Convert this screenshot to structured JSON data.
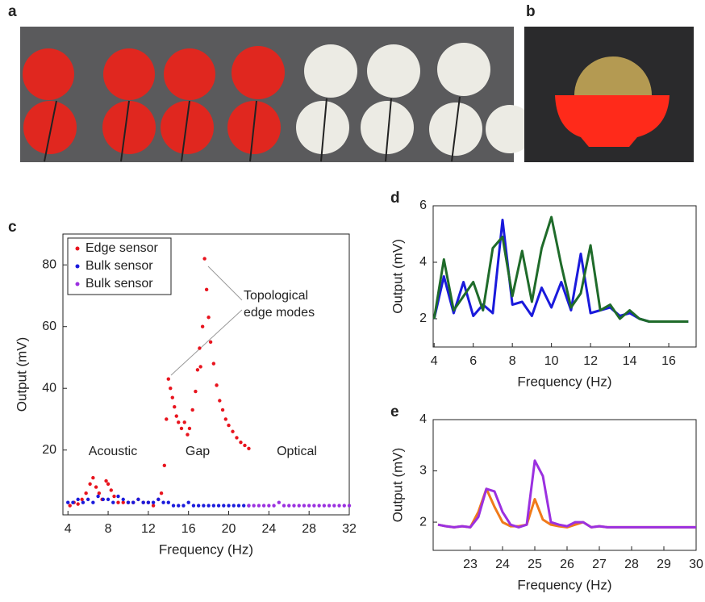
{
  "figure_labels": [
    "a",
    "b"
  ],
  "chart_data": [
    {
      "type": "scatter",
      "panel_label": "c",
      "xlabel": "Frequency (Hz)",
      "ylabel": "Output (mV)",
      "xlim": [
        3.5,
        32
      ],
      "xticks": [
        4,
        8,
        12,
        16,
        20,
        24,
        28,
        32
      ],
      "ylim": [
        -1,
        90
      ],
      "yticks": [
        20,
        40,
        60,
        80
      ],
      "grid": false,
      "legend": "upper left",
      "annotations": [
        "Topological",
        "edge modes",
        "Acoustic",
        "Gap",
        "Optical"
      ],
      "series": [
        {
          "name": "Edge sensor",
          "color": "#e8141e",
          "x": [
            4.2,
            4.6,
            5,
            5.4,
            5.8,
            6.2,
            6.5,
            6.8,
            7.1,
            7.4,
            7.8,
            8,
            8.3,
            8.6,
            9,
            9.5,
            10,
            10.5,
            11,
            11.5,
            12,
            12.5,
            13,
            13.3,
            13.6,
            13.8,
            14,
            14.2,
            14.4,
            14.6,
            14.8,
            15,
            15.3,
            15.6,
            15.9,
            16.1,
            16.4,
            16.7,
            16.9,
            17.1,
            17.2,
            17.4,
            17.6,
            17.8,
            18,
            18.2,
            18.5,
            18.8,
            19.1,
            19.4,
            19.7,
            20,
            20.4,
            20.8,
            21.2,
            21.6,
            22
          ],
          "values": [
            2,
            3,
            2.5,
            4,
            6,
            9,
            11,
            8,
            6,
            4,
            10,
            9,
            7,
            5,
            3,
            3,
            3,
            3,
            4,
            3,
            3,
            2,
            4,
            6,
            15,
            30,
            43,
            40,
            37,
            34,
            31,
            29,
            27,
            29,
            25,
            27,
            33,
            39,
            46,
            53,
            47,
            60,
            82,
            72,
            63,
            55,
            48,
            41,
            36,
            33,
            30,
            28,
            26,
            24,
            22.5,
            21.5,
            20.5
          ]
        },
        {
          "name": "Bulk sensor",
          "color": "#1a1adc",
          "x": [
            4,
            4.5,
            5,
            5.5,
            6,
            6.5,
            7,
            7.5,
            8,
            8.5,
            9,
            9.5,
            10,
            10.5,
            11,
            11.5,
            12,
            12.5,
            13,
            13.5,
            14,
            14.5,
            15,
            15.5,
            16,
            16.5,
            17,
            17.5,
            18,
            18.5,
            19,
            19.5,
            20,
            20.5,
            21,
            21.5,
            22
          ],
          "values": [
            3,
            3,
            4,
            3,
            4,
            3,
            5,
            4,
            4,
            3,
            5,
            4,
            3,
            3,
            4,
            3,
            3,
            3,
            4,
            3,
            3,
            2,
            2,
            2,
            3,
            2,
            2,
            2,
            2,
            2,
            2,
            2,
            2,
            2,
            2,
            2,
            2
          ]
        },
        {
          "name": "Bulk sensor",
          "color": "#9b30e0",
          "x": [
            22,
            22.5,
            23,
            23.5,
            24,
            24.5,
            25,
            25.5,
            26,
            26.5,
            27,
            27.5,
            28,
            28.5,
            29,
            29.5,
            30,
            30.5,
            31,
            31.5,
            32
          ],
          "values": [
            2,
            2,
            2,
            2,
            2,
            2,
            3,
            2,
            2,
            2,
            2,
            2,
            2,
            2,
            2,
            2,
            2,
            2,
            2,
            2,
            2
          ]
        }
      ]
    },
    {
      "type": "line",
      "panel_label": "d",
      "xlabel": "Frequency (Hz)",
      "ylabel": "Output (mV)",
      "xlim": [
        3.95,
        17.4
      ],
      "xticks": [
        4,
        6,
        8,
        10,
        12,
        14,
        16
      ],
      "ylim": [
        1,
        6
      ],
      "yticks": [
        2,
        4,
        6
      ],
      "grid": false,
      "x": [
        4,
        4.5,
        5,
        5.5,
        6,
        6.5,
        7,
        7.5,
        8,
        8.5,
        9,
        9.5,
        10,
        10.5,
        11,
        11.5,
        12,
        12.5,
        13,
        13.5,
        14,
        14.5,
        15,
        15.5,
        16,
        16.5,
        17
      ],
      "series": [
        {
          "color": "#1a1adc",
          "values": [
            2.0,
            3.5,
            2.2,
            3.3,
            2.1,
            2.5,
            2.2,
            5.5,
            2.5,
            2.6,
            2.1,
            3.1,
            2.4,
            3.3,
            2.3,
            4.3,
            2.2,
            2.3,
            2.4,
            2.1,
            2.2,
            2.0,
            1.9,
            1.9,
            1.9,
            1.9,
            1.9
          ]
        },
        {
          "color": "#1f6b2a",
          "values": [
            2.0,
            4.1,
            2.3,
            2.8,
            3.3,
            2.3,
            4.5,
            4.9,
            2.8,
            4.4,
            2.6,
            4.5,
            5.6,
            3.9,
            2.4,
            2.9,
            4.6,
            2.3,
            2.5,
            2.0,
            2.3,
            2.0,
            1.9,
            1.9,
            1.9,
            1.9,
            1.9
          ]
        }
      ]
    },
    {
      "type": "line",
      "panel_label": "e",
      "xlabel": "Frequency (Hz)",
      "ylabel": "Output (mV)",
      "xlim": [
        21.85,
        30
      ],
      "xticks": [
        23,
        24,
        25,
        26,
        27,
        28,
        29,
        30
      ],
      "ylim": [
        1.45,
        4
      ],
      "yticks": [
        2,
        3,
        4
      ],
      "grid": false,
      "x": [
        22,
        22.25,
        22.5,
        22.75,
        23,
        23.25,
        23.5,
        23.75,
        24,
        24.25,
        24.5,
        24.75,
        25,
        25.25,
        25.5,
        25.75,
        26,
        26.25,
        26.5,
        26.75,
        27,
        27.25,
        27.5,
        27.75,
        28,
        28.25,
        28.5,
        28.75,
        29,
        29.25,
        29.5,
        29.75,
        30
      ],
      "series": [
        {
          "color": "#f07a1a",
          "values": [
            1.95,
            1.92,
            1.9,
            1.92,
            1.9,
            2.2,
            2.65,
            2.3,
            2.0,
            1.92,
            1.92,
            1.95,
            2.45,
            2.05,
            1.95,
            1.92,
            1.9,
            1.95,
            2.0,
            1.9,
            1.92,
            1.9,
            1.9,
            1.9,
            1.9,
            1.9,
            1.9,
            1.9,
            1.9,
            1.9,
            1.9,
            1.9,
            1.9
          ]
        },
        {
          "color": "#9b30e0",
          "values": [
            1.95,
            1.92,
            1.9,
            1.92,
            1.9,
            2.1,
            2.65,
            2.6,
            2.2,
            1.95,
            1.9,
            1.95,
            3.2,
            2.9,
            2.0,
            1.95,
            1.92,
            2.0,
            2.0,
            1.9,
            1.92,
            1.9,
            1.9,
            1.9,
            1.9,
            1.9,
            1.9,
            1.9,
            1.9,
            1.9,
            1.9,
            1.9,
            1.9
          ]
        }
      ]
    }
  ]
}
